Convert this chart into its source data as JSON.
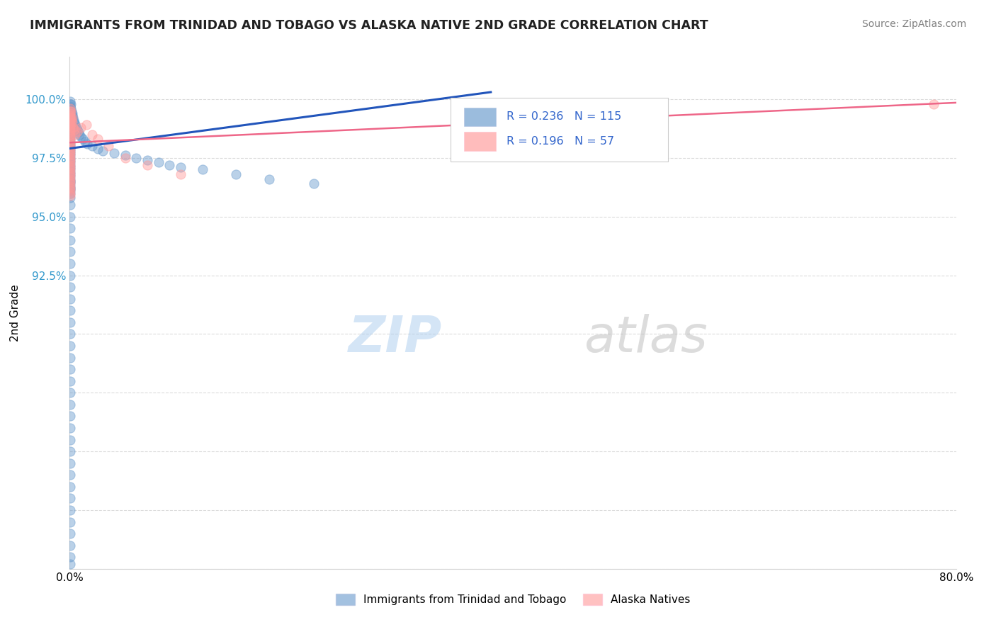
{
  "title": "IMMIGRANTS FROM TRINIDAD AND TOBAGO VS ALASKA NATIVE 2ND GRADE CORRELATION CHART",
  "source": "Source: ZipAtlas.com",
  "ylabel": "2nd Grade",
  "xlim": [
    0.0,
    80.0
  ],
  "ylim": [
    80.0,
    101.8
  ],
  "ytick_vals": [
    80.0,
    82.5,
    85.0,
    87.5,
    90.0,
    92.5,
    95.0,
    97.5,
    100.0
  ],
  "ytick_labels": [
    "",
    "",
    "",
    "",
    "",
    "92.5%",
    "95.0%",
    "97.5%",
    "100.0%"
  ],
  "xtick_vals": [
    0.0,
    10.0,
    20.0,
    30.0,
    40.0,
    50.0,
    60.0,
    70.0,
    80.0
  ],
  "xtick_labels": [
    "0.0%",
    "",
    "",
    "",
    "",
    "",
    "",
    "",
    "80.0%"
  ],
  "blue_R": 0.236,
  "blue_N": 115,
  "pink_R": 0.196,
  "pink_N": 57,
  "blue_color": "#6699CC",
  "pink_color": "#FF9999",
  "blue_line_color": "#2255BB",
  "pink_line_color": "#EE6688",
  "blue_label": "Immigrants from Trinidad and Tobago",
  "pink_label": "Alaska Natives",
  "legend_R_color": "#3366CC",
  "watermark_zip": "ZIP",
  "watermark_atlas": "atlas",
  "blue_line_x": [
    0.0,
    38.0
  ],
  "blue_line_y": [
    97.9,
    100.3
  ],
  "pink_line_x": [
    0.0,
    80.0
  ],
  "pink_line_y": [
    98.15,
    99.85
  ],
  "blue_x": [
    0.05,
    0.05,
    0.05,
    0.05,
    0.05,
    0.05,
    0.05,
    0.05,
    0.05,
    0.05,
    0.05,
    0.05,
    0.05,
    0.05,
    0.05,
    0.05,
    0.05,
    0.05,
    0.05,
    0.05,
    0.05,
    0.05,
    0.05,
    0.05,
    0.05,
    0.05,
    0.05,
    0.05,
    0.05,
    0.05,
    0.05,
    0.05,
    0.05,
    0.05,
    0.05,
    0.05,
    0.05,
    0.05,
    0.05,
    0.05,
    0.1,
    0.1,
    0.1,
    0.1,
    0.1,
    0.15,
    0.15,
    0.15,
    0.2,
    0.2,
    0.25,
    0.3,
    0.35,
    0.4,
    0.5,
    0.6,
    0.7,
    0.8,
    0.9,
    1.0,
    1.2,
    1.4,
    1.6,
    2.0,
    2.5,
    3.0,
    4.0,
    5.0,
    6.0,
    7.0,
    8.0,
    9.0,
    10.0,
    12.0,
    15.0,
    18.0,
    22.0,
    38.0,
    0.05,
    0.05,
    0.05,
    0.05,
    0.05,
    0.05,
    0.05,
    0.05,
    0.05,
    0.05,
    0.05,
    0.05,
    0.05,
    0.05,
    0.05,
    0.05,
    0.05,
    0.05,
    0.05,
    0.05,
    0.05,
    0.05,
    0.05,
    0.05,
    0.05,
    0.05,
    0.05,
    0.05,
    0.05,
    0.05,
    0.05,
    0.05,
    0.05,
    0.05,
    0.05
  ],
  "blue_y": [
    99.9,
    99.8,
    99.7,
    99.6,
    99.5,
    99.4,
    99.3,
    99.2,
    99.1,
    99.0,
    98.9,
    98.8,
    98.7,
    98.6,
    98.5,
    98.4,
    98.3,
    98.2,
    98.1,
    98.0,
    97.9,
    97.8,
    97.7,
    97.6,
    97.5,
    97.4,
    97.3,
    97.2,
    97.1,
    97.0,
    96.9,
    96.8,
    96.7,
    96.6,
    96.5,
    96.4,
    96.3,
    96.2,
    96.1,
    96.0,
    99.8,
    99.6,
    99.4,
    99.2,
    99.0,
    99.5,
    99.3,
    99.1,
    99.4,
    99.2,
    99.3,
    99.2,
    99.1,
    99.0,
    98.9,
    98.8,
    98.7,
    98.6,
    98.5,
    98.4,
    98.3,
    98.2,
    98.1,
    98.0,
    97.9,
    97.8,
    97.7,
    97.6,
    97.5,
    97.4,
    97.3,
    97.2,
    97.1,
    97.0,
    96.8,
    96.6,
    96.4,
    99.5,
    95.5,
    95.0,
    94.5,
    94.0,
    93.5,
    93.0,
    92.5,
    92.0,
    91.5,
    91.0,
    90.5,
    90.0,
    89.5,
    89.0,
    88.5,
    88.0,
    87.5,
    87.0,
    86.5,
    86.0,
    85.5,
    85.0,
    84.5,
    84.0,
    83.5,
    83.0,
    82.5,
    82.0,
    81.5,
    81.0,
    80.5,
    80.2,
    95.8,
    96.2,
    96.5
  ],
  "pink_x": [
    0.05,
    0.05,
    0.05,
    0.05,
    0.05,
    0.05,
    0.05,
    0.05,
    0.05,
    0.05,
    0.05,
    0.05,
    0.05,
    0.05,
    0.05,
    0.05,
    0.05,
    0.05,
    0.05,
    0.05,
    0.05,
    0.05,
    0.05,
    0.05,
    0.05,
    0.05,
    0.05,
    0.05,
    0.1,
    0.1,
    0.1,
    0.15,
    0.2,
    0.25,
    0.3,
    0.4,
    0.5,
    0.7,
    1.0,
    1.5,
    2.0,
    2.5,
    3.5,
    5.0,
    7.0,
    10.0,
    0.05,
    0.05,
    0.05,
    0.05,
    0.05,
    0.05,
    0.05,
    0.05,
    0.05,
    0.05,
    78.0
  ],
  "pink_y": [
    99.6,
    99.5,
    99.4,
    99.3,
    99.2,
    99.1,
    99.0,
    98.9,
    98.8,
    98.7,
    98.6,
    98.5,
    98.4,
    98.3,
    98.2,
    98.1,
    98.0,
    97.9,
    97.8,
    97.7,
    97.6,
    97.5,
    97.4,
    97.3,
    97.2,
    97.1,
    97.0,
    96.9,
    99.5,
    99.2,
    98.9,
    99.1,
    99.2,
    99.0,
    98.8,
    98.7,
    98.5,
    98.6,
    98.8,
    98.9,
    98.5,
    98.3,
    98.0,
    97.5,
    97.2,
    96.8,
    96.8,
    96.7,
    96.6,
    96.5,
    96.4,
    96.3,
    96.2,
    96.1,
    96.0,
    95.9,
    99.8
  ]
}
